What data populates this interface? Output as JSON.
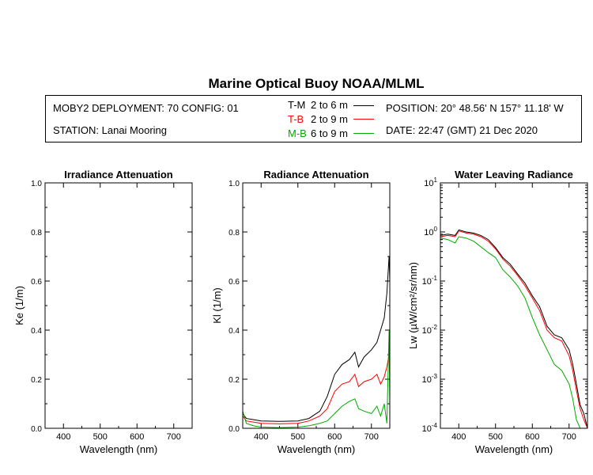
{
  "title": "Marine Optical Buoy NOAA/MLML",
  "info": {
    "deployment": "MOBY2 DEPLOYMENT: 70 CONFIG: 01",
    "station": "STATION: Lanai Mooring",
    "position": "POSITION: 20° 48.56' N   157° 11.18' W",
    "date": "DATE: 22:47 (GMT) 21 Dec 2020"
  },
  "legend": [
    {
      "code": "T-M",
      "range": "2 to 6  m",
      "color": "#000000"
    },
    {
      "code": "T-B",
      "range": "2 to 9  m",
      "color": "#ff0000"
    },
    {
      "code": "M-B",
      "range": "6 to 9  m",
      "color": "#00aa00"
    }
  ],
  "chart_data": [
    {
      "type": "line",
      "title": "Irradiance Attenuation",
      "xlabel": "Wavelength (nm)",
      "ylabel": "Ke  (1/m)",
      "xlim": [
        350,
        750
      ],
      "ylim": [
        0,
        1.0
      ],
      "xticks": [
        "400",
        "500",
        "600",
        "700"
      ],
      "yticks": [
        "0.0",
        "0.2",
        "0.4",
        "0.6",
        "0.8",
        "1.0"
      ],
      "series": []
    },
    {
      "type": "line",
      "title": "Radiance Attenuation",
      "xlabel": "Wavelength (nm)",
      "ylabel": "Kl  (1/m)",
      "xlim": [
        350,
        750
      ],
      "ylim": [
        0,
        1.0
      ],
      "xticks": [
        "400",
        "500",
        "600",
        "700"
      ],
      "yticks": [
        "0.0",
        "0.2",
        "0.4",
        "0.6",
        "0.8",
        "1.0"
      ],
      "series": [
        {
          "name": "T-M",
          "color": "#000000",
          "x": [
            350,
            360,
            380,
            400,
            450,
            500,
            530,
            560,
            580,
            600,
            620,
            640,
            655,
            665,
            680,
            700,
            715,
            725,
            735,
            742,
            748,
            750
          ],
          "y": [
            0.06,
            0.04,
            0.035,
            0.03,
            0.028,
            0.03,
            0.04,
            0.07,
            0.13,
            0.22,
            0.26,
            0.28,
            0.31,
            0.25,
            0.29,
            0.32,
            0.35,
            0.4,
            0.45,
            0.55,
            0.7,
            0.6
          ]
        },
        {
          "name": "T-B",
          "color": "#ff0000",
          "x": [
            350,
            360,
            380,
            400,
            450,
            500,
            530,
            560,
            580,
            600,
            620,
            640,
            655,
            665,
            680,
            700,
            715,
            725,
            735,
            742,
            748,
            750
          ],
          "y": [
            0.05,
            0.03,
            0.025,
            0.02,
            0.018,
            0.02,
            0.03,
            0.05,
            0.08,
            0.15,
            0.18,
            0.19,
            0.22,
            0.17,
            0.19,
            0.2,
            0.22,
            0.18,
            0.21,
            0.25,
            0.3,
            0.22
          ]
        },
        {
          "name": "M-B",
          "color": "#00aa00",
          "x": [
            350,
            360,
            380,
            400,
            450,
            500,
            530,
            560,
            580,
            600,
            620,
            640,
            655,
            665,
            680,
            700,
            715,
            725,
            735,
            742,
            748,
            750
          ],
          "y": [
            0.07,
            0.02,
            0.01,
            0.005,
            0.003,
            0.005,
            0.01,
            0.02,
            0.03,
            0.06,
            0.09,
            0.11,
            0.12,
            0.08,
            0.07,
            0.06,
            0.09,
            0.05,
            0.1,
            0.02,
            0.4,
            0.1
          ]
        }
      ]
    },
    {
      "type": "line",
      "title": "Water Leaving Radiance",
      "xlabel": "Wavelength (nm)",
      "ylabel": "Lw  (µW/cm²/sr/nm)",
      "xlim": [
        350,
        750
      ],
      "ylim": [
        0.0001,
        10
      ],
      "yscale": "log",
      "xticks": [
        "400",
        "500",
        "600",
        "700"
      ],
      "yticks": [
        "10-4",
        "10-3",
        "10-2",
        "10-1",
        "100",
        "101"
      ],
      "series": [
        {
          "name": "T-M",
          "color": "#000000",
          "x": [
            350,
            370,
            390,
            400,
            420,
            440,
            460,
            480,
            500,
            520,
            540,
            560,
            580,
            600,
            620,
            640,
            660,
            680,
            700,
            710,
            720,
            730,
            740,
            750
          ],
          "y": [
            0.85,
            0.9,
            0.85,
            1.1,
            1.0,
            0.95,
            0.85,
            0.7,
            0.48,
            0.3,
            0.22,
            0.14,
            0.09,
            0.05,
            0.03,
            0.012,
            0.008,
            0.007,
            0.004,
            0.002,
            0.0008,
            0.0003,
            0.0002,
            0.0001
          ]
        },
        {
          "name": "T-B",
          "color": "#ff0000",
          "x": [
            350,
            370,
            390,
            400,
            420,
            440,
            460,
            480,
            500,
            520,
            540,
            560,
            580,
            600,
            620,
            640,
            660,
            680,
            700,
            710,
            720,
            730,
            740,
            750
          ],
          "y": [
            0.8,
            0.85,
            0.8,
            1.05,
            0.95,
            0.9,
            0.8,
            0.65,
            0.45,
            0.28,
            0.2,
            0.13,
            0.08,
            0.045,
            0.025,
            0.01,
            0.007,
            0.006,
            0.003,
            0.0015,
            0.0006,
            0.00025,
            0.00015,
            0.0001
          ]
        },
        {
          "name": "M-B",
          "color": "#00aa00",
          "x": [
            350,
            370,
            390,
            400,
            420,
            440,
            460,
            480,
            500,
            520,
            540,
            560,
            580,
            600,
            620,
            640,
            660,
            680,
            700,
            710,
            720,
            730,
            740,
            750
          ],
          "y": [
            0.75,
            0.7,
            0.6,
            0.8,
            0.75,
            0.65,
            0.5,
            0.38,
            0.3,
            0.17,
            0.12,
            0.08,
            0.045,
            0.018,
            0.008,
            0.004,
            0.002,
            0.0015,
            0.0008,
            0.0004,
            0.00015,
            0.0001,
            0.0001,
            0.0001
          ]
        }
      ]
    }
  ]
}
